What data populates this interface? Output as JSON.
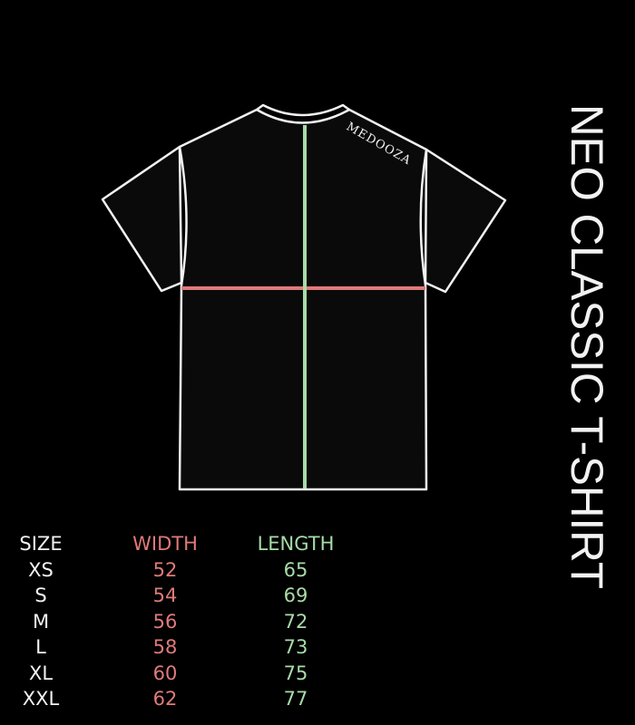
{
  "title": "NEO CLASSIC T-SHIRT",
  "brand_label": "MEDOOZA",
  "colors": {
    "background": "#000000",
    "outline": "#ffffff",
    "width": "#e07a7a",
    "length": "#a8dba8"
  },
  "table": {
    "headers": [
      "SIZE",
      "WIDTH",
      "LENGTH"
    ],
    "rows": [
      {
        "size": "XS",
        "width": "52",
        "length": "65"
      },
      {
        "size": "S",
        "width": "54",
        "length": "69"
      },
      {
        "size": "M",
        "width": "56",
        "length": "72"
      },
      {
        "size": "L",
        "width": "58",
        "length": "73"
      },
      {
        "size": "XL",
        "width": "60",
        "length": "75"
      },
      {
        "size": "XXL",
        "width": "62",
        "length": "77"
      }
    ]
  }
}
